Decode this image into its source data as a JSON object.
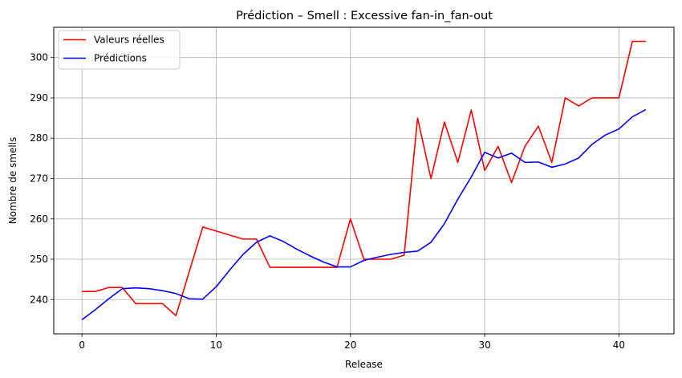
{
  "chart_data": {
    "type": "line",
    "title": "Prédiction – Smell : Excessive fan-in_fan-out",
    "xlabel": "Release",
    "ylabel": "Nombre de smells",
    "xlim": [
      -2.1,
      44.1
    ],
    "ylim": [
      231.5,
      307.5
    ],
    "xticks": [
      0,
      10,
      20,
      30,
      40
    ],
    "yticks": [
      240,
      250,
      260,
      270,
      280,
      290,
      300
    ],
    "grid": true,
    "legend_position": "upper left",
    "x": [
      0,
      1,
      2,
      3,
      4,
      5,
      6,
      7,
      8,
      9,
      10,
      11,
      12,
      13,
      14,
      15,
      16,
      17,
      18,
      19,
      20,
      21,
      22,
      23,
      24,
      25,
      26,
      27,
      28,
      29,
      30,
      31,
      32,
      33,
      34,
      35,
      36,
      37,
      38,
      39,
      40,
      41,
      42
    ],
    "series": [
      {
        "name": "Valeurs réelles",
        "color": "#ff0000",
        "values": [
          242,
          242,
          243,
          243,
          239,
          239,
          239,
          236,
          247,
          258,
          257,
          256,
          255,
          255,
          248,
          248,
          248,
          248,
          248,
          248,
          260,
          250,
          250,
          250,
          251,
          285,
          270,
          284,
          274,
          287,
          272,
          278,
          269,
          278,
          283,
          274,
          290,
          288,
          290,
          290,
          290,
          304,
          304
        ]
      },
      {
        "name": "Prédictions",
        "color": "#0000ff",
        "values": [
          235,
          237.5,
          240.2,
          242.7,
          242.9,
          242.7,
          242.2,
          241.5,
          240.2,
          240.1,
          243.2,
          247.3,
          251.2,
          254.2,
          255.8,
          254.4,
          252.5,
          250.8,
          249.3,
          248.1,
          248.1,
          249.7,
          250.5,
          251.2,
          251.7,
          252,
          254.2,
          258.8,
          264.9,
          270.4,
          276.5,
          275.1,
          276.3,
          274,
          274.1,
          272.8,
          273.6,
          275.1,
          278.5,
          280.8,
          282.3,
          285.3,
          287.1
        ]
      }
    ]
  }
}
